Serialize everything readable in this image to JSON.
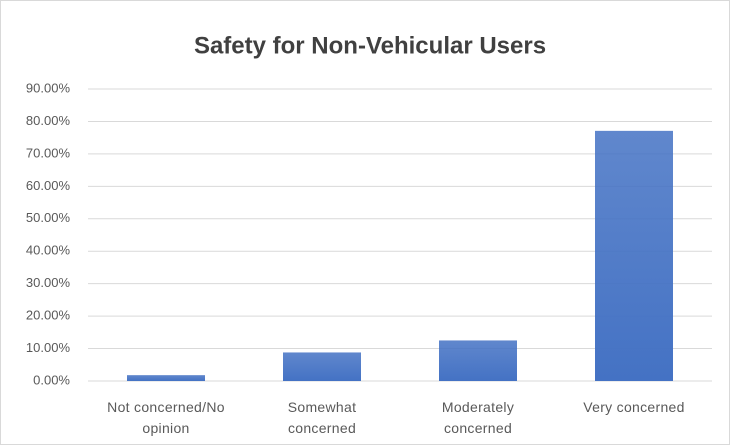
{
  "chart_data": {
    "type": "bar",
    "title": "Safety for Non-Vehicular Users",
    "categories": [
      "Not concerned/No opinion",
      "Somewhat concerned",
      "Moderately concerned",
      "Very concerned"
    ],
    "values": [
      1.8,
      8.8,
      12.5,
      77.1
    ],
    "color": "#4472c4",
    "ylim": [
      0,
      90
    ],
    "yticks": [
      {
        "value": 0,
        "label": "0.00%"
      },
      {
        "value": 10,
        "label": "10.00%"
      },
      {
        "value": 20,
        "label": "20.00%"
      },
      {
        "value": 30,
        "label": "30.00%"
      },
      {
        "value": 40,
        "label": "40.00%"
      },
      {
        "value": 50,
        "label": "50.00%"
      },
      {
        "value": 60,
        "label": "60.00%"
      },
      {
        "value": 70,
        "label": "70.00%"
      },
      {
        "value": 80,
        "label": "80.00%"
      },
      {
        "value": 90,
        "label": "90.00%"
      }
    ],
    "grid": true
  }
}
